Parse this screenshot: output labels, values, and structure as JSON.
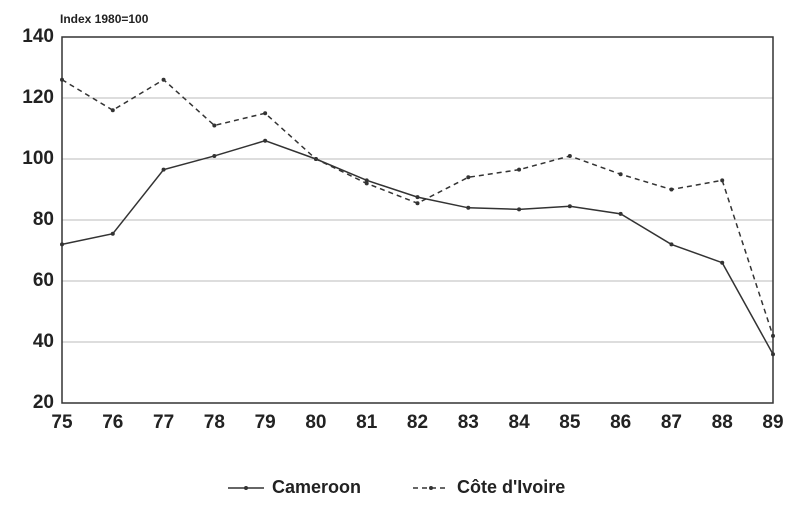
{
  "chart_data": {
    "type": "line",
    "axis_label": "Index 1980=100",
    "categories": [
      "75",
      "76",
      "77",
      "78",
      "79",
      "80",
      "81",
      "82",
      "83",
      "84",
      "85",
      "86",
      "87",
      "88",
      "89"
    ],
    "series": [
      {
        "name": "Cameroon",
        "color": "#333333",
        "style": "solid",
        "values": [
          72,
          75.5,
          96.5,
          101,
          106,
          100,
          93,
          87.5,
          84,
          83.5,
          84.5,
          82,
          72,
          66,
          36
        ]
      },
      {
        "name": "Côte d'Ivoire",
        "color": "#333333",
        "style": "dashed",
        "values": [
          126,
          116,
          126,
          111,
          115,
          100,
          92,
          85.5,
          94,
          96.5,
          101,
          95,
          90,
          93,
          42
        ]
      }
    ],
    "ylim": [
      20,
      140
    ],
    "yticks": [
      20,
      40,
      60,
      80,
      100,
      120,
      140
    ],
    "grid": true
  }
}
